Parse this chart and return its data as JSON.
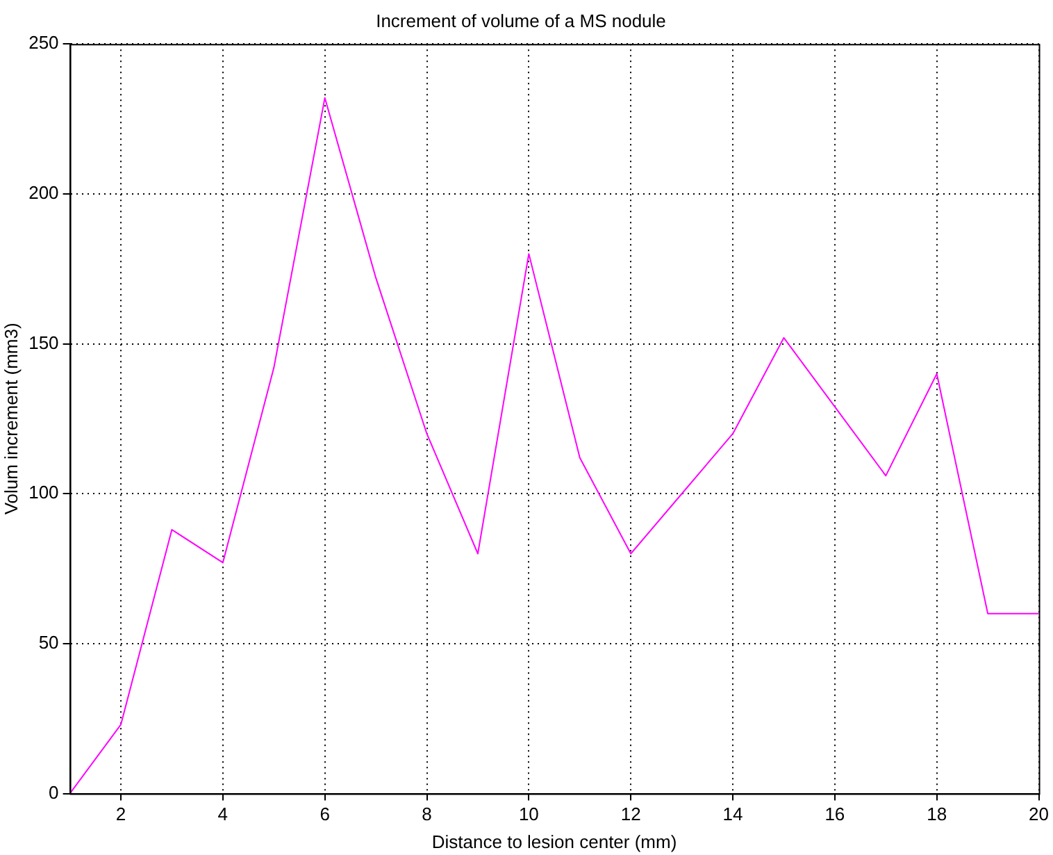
{
  "chart_data": {
    "type": "line",
    "title": "Increment of volume of a MS nodule",
    "xlabel": "Distance to lesion center (mm)",
    "ylabel": "Volum increment (mm3)",
    "x": [
      1,
      2,
      3,
      4,
      5,
      6,
      7,
      8,
      9,
      10,
      11,
      12,
      13,
      14,
      15,
      16,
      17,
      18,
      19,
      20
    ],
    "series": [
      {
        "color": "#ff00ff",
        "values": [
          0,
          23,
          88,
          77,
          142,
          232,
          172,
          120,
          80,
          180,
          112,
          80,
          100,
          120,
          152,
          129,
          106,
          140,
          60,
          60
        ]
      }
    ],
    "xlim": [
      1,
      20
    ],
    "xticks": [
      2,
      4,
      6,
      8,
      10,
      12,
      14,
      16,
      18,
      20
    ],
    "ylim": [
      0,
      250
    ],
    "yticks": [
      0,
      50,
      100,
      150,
      200,
      250
    ],
    "grid": true,
    "legend": false,
    "marker": "none",
    "line_style": "solid"
  }
}
